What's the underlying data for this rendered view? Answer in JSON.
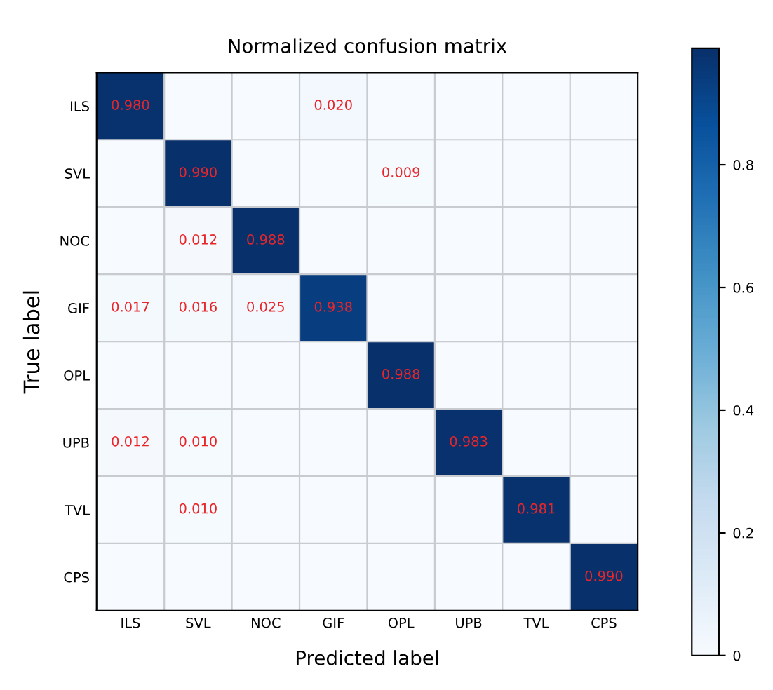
{
  "chart_data": {
    "type": "heatmap",
    "title": "Normalized confusion matrix",
    "xlabel": "Predicted label",
    "ylabel": "True label",
    "categories": [
      "ILS",
      "SVL",
      "NOC",
      "GIF",
      "OPL",
      "UPB",
      "TVL",
      "CPS"
    ],
    "y_categories": [
      "ILS",
      "SVL",
      "NOC",
      "GIF",
      "OPL",
      "UPB",
      "TVL",
      "CPS"
    ],
    "cells": [
      [
        0.98,
        null,
        null,
        0.02,
        null,
        null,
        null,
        null
      ],
      [
        null,
        0.99,
        null,
        null,
        0.009,
        null,
        null,
        null
      ],
      [
        null,
        0.012,
        0.988,
        null,
        null,
        null,
        null,
        null
      ],
      [
        0.017,
        0.016,
        0.025,
        0.938,
        null,
        null,
        null,
        null
      ],
      [
        null,
        null,
        null,
        null,
        0.988,
        null,
        null,
        null
      ],
      [
        0.012,
        0.01,
        null,
        null,
        null,
        0.983,
        null,
        null
      ],
      [
        null,
        0.01,
        null,
        null,
        null,
        null,
        0.981,
        null
      ],
      [
        null,
        null,
        null,
        null,
        null,
        null,
        null,
        0.99
      ]
    ],
    "cell_labels": [
      [
        "0.980",
        null,
        null,
        "0.020",
        null,
        null,
        null,
        null
      ],
      [
        null,
        "0.990",
        null,
        null,
        "0.009",
        null,
        null,
        null
      ],
      [
        null,
        "0.012",
        "0.988",
        null,
        null,
        null,
        null,
        null
      ],
      [
        "0.017",
        "0.016",
        "0.025",
        "0.938",
        null,
        null,
        null,
        null
      ],
      [
        null,
        null,
        null,
        null,
        "0.988",
        null,
        null,
        null
      ],
      [
        "0.012",
        "0.010",
        null,
        null,
        null,
        "0.983",
        null,
        null
      ],
      [
        null,
        "0.010",
        null,
        null,
        null,
        null,
        "0.981",
        null
      ],
      [
        null,
        null,
        null,
        null,
        null,
        null,
        null,
        "0.990"
      ]
    ],
    "clim": [
      0,
      0.99
    ],
    "cticks": [
      0,
      0.2,
      0.4,
      0.6,
      0.8
    ],
    "data_labels": true,
    "grid": true
  }
}
